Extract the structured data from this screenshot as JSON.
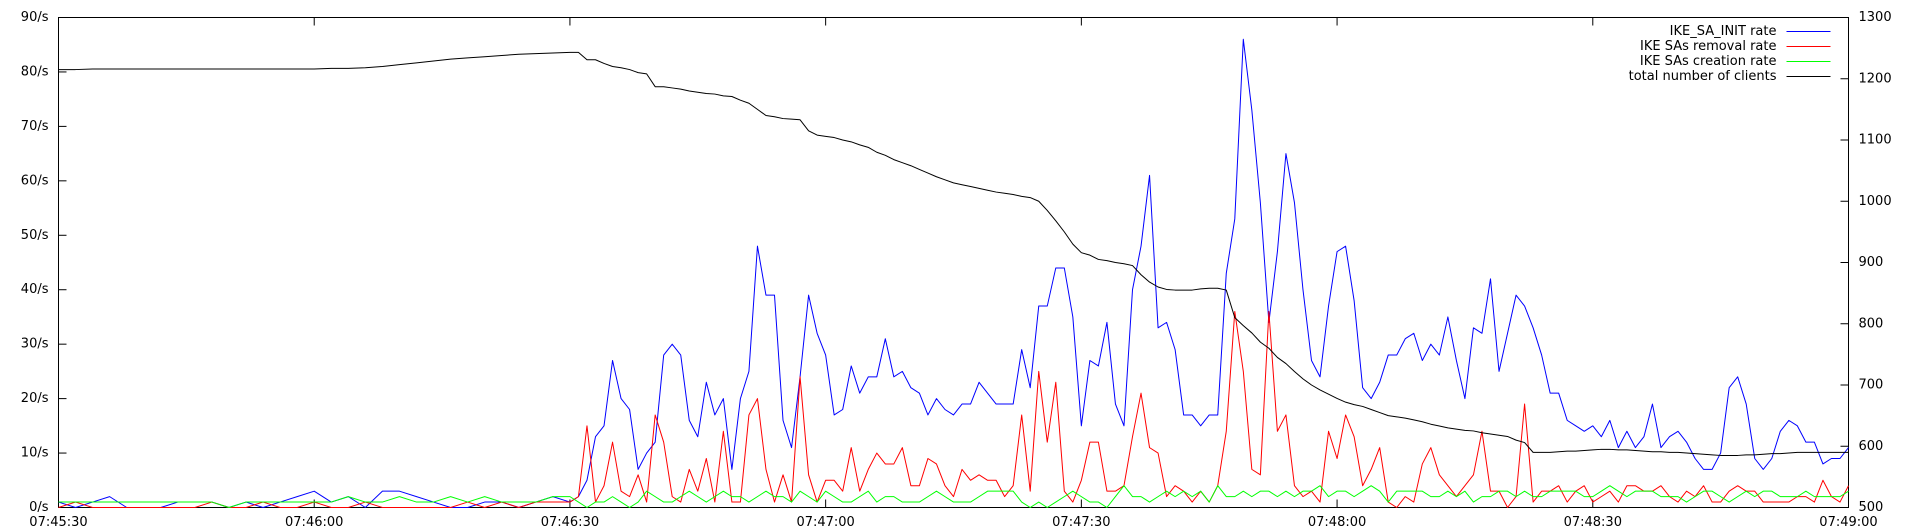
{
  "chart_data": {
    "type": "line",
    "x": [
      "07:45:30",
      "07:45:32",
      "07:45:34",
      "07:45:36",
      "07:45:38",
      "07:45:40",
      "07:45:42",
      "07:45:44",
      "07:45:46",
      "07:45:48",
      "07:45:50",
      "07:45:52",
      "07:45:54",
      "07:45:56",
      "07:45:58",
      "07:46:00",
      "07:46:02",
      "07:46:04",
      "07:46:06",
      "07:46:08",
      "07:46:10",
      "07:46:12",
      "07:46:14",
      "07:46:16",
      "07:46:18",
      "07:46:20",
      "07:46:22",
      "07:46:24",
      "07:46:26",
      "07:46:28",
      "07:46:30",
      "07:46:31",
      "07:46:32",
      "07:46:33",
      "07:46:34",
      "07:46:35",
      "07:46:36",
      "07:46:37",
      "07:46:38",
      "07:46:39",
      "07:46:40",
      "07:46:41",
      "07:46:42",
      "07:46:43",
      "07:46:44",
      "07:46:45",
      "07:46:46",
      "07:46:47",
      "07:46:48",
      "07:46:49",
      "07:46:50",
      "07:46:51",
      "07:46:52",
      "07:46:53",
      "07:46:54",
      "07:46:55",
      "07:46:56",
      "07:46:57",
      "07:46:58",
      "07:46:59",
      "07:47:00",
      "07:47:01",
      "07:47:02",
      "07:47:03",
      "07:47:04",
      "07:47:05",
      "07:47:06",
      "07:47:07",
      "07:47:08",
      "07:47:09",
      "07:47:10",
      "07:47:11",
      "07:47:12",
      "07:47:13",
      "07:47:14",
      "07:47:15",
      "07:47:16",
      "07:47:17",
      "07:47:18",
      "07:47:19",
      "07:47:20",
      "07:47:21",
      "07:47:22",
      "07:47:23",
      "07:47:24",
      "07:47:25",
      "07:47:26",
      "07:47:27",
      "07:47:28",
      "07:47:29",
      "07:47:30",
      "07:47:31",
      "07:47:32",
      "07:47:33",
      "07:47:34",
      "07:47:35",
      "07:47:36",
      "07:47:37",
      "07:47:38",
      "07:47:39",
      "07:47:40",
      "07:47:41",
      "07:47:42",
      "07:47:43",
      "07:47:44",
      "07:47:45",
      "07:47:46",
      "07:47:47",
      "07:47:48",
      "07:47:49",
      "07:47:50",
      "07:47:51",
      "07:47:52",
      "07:47:53",
      "07:47:54",
      "07:47:55",
      "07:47:56",
      "07:47:57",
      "07:47:58",
      "07:47:59",
      "07:48:00",
      "07:48:01",
      "07:48:02",
      "07:48:03",
      "07:48:04",
      "07:48:05",
      "07:48:06",
      "07:48:07",
      "07:48:08",
      "07:48:09",
      "07:48:10",
      "07:48:11",
      "07:48:12",
      "07:48:13",
      "07:48:14",
      "07:48:15",
      "07:48:16",
      "07:48:17",
      "07:48:18",
      "07:48:19",
      "07:48:20",
      "07:48:21",
      "07:48:22",
      "07:48:23",
      "07:48:24",
      "07:48:25",
      "07:48:26",
      "07:48:27",
      "07:48:28",
      "07:48:29",
      "07:48:30",
      "07:48:31",
      "07:48:32",
      "07:48:33",
      "07:48:34",
      "07:48:35",
      "07:48:36",
      "07:48:37",
      "07:48:38",
      "07:48:39",
      "07:48:40",
      "07:48:41",
      "07:48:42",
      "07:48:43",
      "07:48:44",
      "07:48:45",
      "07:48:46",
      "07:48:47",
      "07:48:48",
      "07:48:49",
      "07:48:50",
      "07:48:51",
      "07:48:52",
      "07:48:53",
      "07:48:54",
      "07:48:55",
      "07:48:56",
      "07:48:57",
      "07:48:58",
      "07:48:59",
      "07:49:00"
    ],
    "series": [
      {
        "name": "IKE_SA_INIT rate",
        "color": "#0000ff",
        "values": [
          1,
          0,
          1,
          2,
          0,
          0,
          0,
          1,
          1,
          1,
          0,
          1,
          0,
          1,
          2,
          3,
          1,
          2,
          0,
          3,
          3,
          2,
          1,
          0,
          0,
          1,
          1,
          0,
          1,
          2,
          1,
          2,
          5,
          13,
          15,
          27,
          20,
          18,
          7,
          10,
          12,
          28,
          30,
          28,
          16,
          13,
          23,
          17,
          20,
          7,
          20,
          25,
          48,
          39,
          39,
          16,
          11,
          24,
          39,
          32,
          28,
          17,
          18,
          26,
          21,
          24,
          24,
          31,
          24,
          25,
          22,
          21,
          17,
          20,
          18,
          17,
          19,
          19,
          23,
          21,
          19,
          19,
          19,
          29,
          22,
          37,
          37,
          44,
          44,
          35,
          15,
          27,
          26,
          34,
          19,
          15,
          40,
          48,
          61,
          33,
          34,
          29,
          17,
          17,
          15,
          17,
          17,
          43,
          53,
          86,
          73,
          56,
          34,
          47,
          65,
          56,
          40,
          27,
          24,
          37,
          47,
          48,
          38,
          22,
          20,
          23,
          28,
          28,
          31,
          32,
          27,
          30,
          28,
          35,
          27,
          20,
          33,
          32,
          42,
          25,
          32,
          39,
          37,
          33,
          28,
          21,
          21,
          16,
          15,
          14,
          15,
          13,
          16,
          11,
          14,
          11,
          13,
          19,
          11,
          13,
          14,
          12,
          9,
          7,
          7,
          10,
          22,
          24,
          19,
          9,
          7,
          9,
          14,
          16,
          15,
          12,
          12,
          8,
          9,
          9,
          11
        ]
      },
      {
        "name": "IKE SAs removal rate",
        "color": "#ff0000",
        "values": [
          0,
          1,
          0,
          0,
          0,
          0,
          0,
          0,
          0,
          1,
          0,
          0,
          1,
          0,
          0,
          1,
          0,
          0,
          1,
          0,
          0,
          0,
          0,
          0,
          1,
          0,
          1,
          0,
          1,
          1,
          1,
          2,
          15,
          1,
          4,
          12,
          3,
          2,
          6,
          1,
          17,
          12,
          2,
          1,
          7,
          3,
          9,
          1,
          14,
          1,
          1,
          17,
          20,
          7,
          1,
          6,
          1,
          24,
          6,
          1,
          5,
          5,
          3,
          11,
          3,
          7,
          10,
          8,
          8,
          11,
          4,
          4,
          9,
          8,
          4,
          2,
          7,
          5,
          6,
          5,
          5,
          2,
          4,
          17,
          3,
          25,
          12,
          23,
          3,
          1,
          5,
          12,
          12,
          3,
          3,
          4,
          13,
          21,
          11,
          10,
          2,
          4,
          3,
          1,
          3,
          1,
          4,
          14,
          36,
          25,
          7,
          6,
          36,
          14,
          17,
          4,
          2,
          3,
          1,
          14,
          9,
          17,
          13,
          4,
          7,
          11,
          1,
          0,
          2,
          1,
          8,
          11,
          6,
          4,
          2,
          4,
          6,
          14,
          3,
          3,
          0,
          2,
          19,
          1,
          3,
          3,
          4,
          1,
          3,
          4,
          1,
          2,
          3,
          1,
          4,
          4,
          3,
          3,
          4,
          2,
          1,
          3,
          2,
          4,
          1,
          1,
          3,
          4,
          3,
          3,
          1,
          1,
          1,
          1,
          2,
          2,
          1,
          5,
          2,
          1,
          4
        ]
      },
      {
        "name": "IKE SAs creation rate",
        "color": "#00ff00",
        "values": [
          1,
          1,
          1,
          1,
          1,
          1,
          1,
          1,
          1,
          1,
          0,
          1,
          1,
          1,
          1,
          1,
          1,
          2,
          1,
          1,
          2,
          1,
          1,
          2,
          1,
          2,
          1,
          1,
          1,
          2,
          2,
          1,
          0,
          1,
          1,
          2,
          1,
          0,
          1,
          3,
          2,
          1,
          1,
          2,
          3,
          2,
          1,
          2,
          3,
          2,
          2,
          1,
          2,
          3,
          2,
          2,
          1,
          3,
          2,
          1,
          3,
          2,
          1,
          1,
          2,
          3,
          1,
          2,
          2,
          1,
          1,
          1,
          2,
          3,
          2,
          1,
          1,
          1,
          2,
          3,
          3,
          3,
          3,
          1,
          0,
          1,
          0,
          1,
          2,
          3,
          2,
          1,
          1,
          0,
          2,
          4,
          2,
          2,
          1,
          2,
          3,
          2,
          3,
          2,
          3,
          1,
          4,
          2,
          2,
          3,
          2,
          3,
          3,
          2,
          3,
          2,
          3,
          3,
          4,
          2,
          3,
          3,
          2,
          3,
          4,
          3,
          1,
          3,
          3,
          3,
          3,
          2,
          2,
          3,
          2,
          3,
          1,
          2,
          2,
          3,
          3,
          2,
          3,
          2,
          2,
          3,
          3,
          3,
          3,
          2,
          2,
          3,
          4,
          3,
          2,
          3,
          3,
          3,
          2,
          2,
          2,
          1,
          2,
          3,
          3,
          2,
          1,
          2,
          3,
          2,
          3,
          3,
          2,
          2,
          2,
          3,
          2,
          2,
          2,
          2,
          3
        ]
      },
      {
        "name": "total number of clients",
        "color": "#000000",
        "axis": "y2",
        "values": [
          1215,
          1215,
          1216,
          1216,
          1216,
          1216,
          1216,
          1216,
          1216,
          1216,
          1216,
          1216,
          1216,
          1216,
          1216,
          1216,
          1217,
          1217,
          1218,
          1220,
          1223,
          1226,
          1229,
          1232,
          1234,
          1236,
          1238,
          1240,
          1241,
          1242,
          1243,
          1243,
          1231,
          1231,
          1225,
          1220,
          1218,
          1215,
          1210,
          1208,
          1187,
          1187,
          1185,
          1183,
          1180,
          1178,
          1176,
          1175,
          1172,
          1171,
          1165,
          1160,
          1150,
          1140,
          1138,
          1135,
          1134,
          1133,
          1115,
          1108,
          1106,
          1104,
          1100,
          1097,
          1092,
          1088,
          1080,
          1075,
          1068,
          1063,
          1058,
          1052,
          1046,
          1040,
          1035,
          1030,
          1027,
          1024,
          1021,
          1018,
          1015,
          1013,
          1011,
          1008,
          1006,
          1000,
          985,
          968,
          950,
          930,
          916,
          912,
          905,
          903,
          900,
          898,
          895,
          880,
          868,
          860,
          856,
          855,
          855,
          855,
          857,
          858,
          858,
          855,
          810,
          797,
          785,
          770,
          760,
          745,
          735,
          722,
          710,
          700,
          692,
          685,
          678,
          672,
          668,
          665,
          660,
          655,
          650,
          648,
          646,
          643,
          640,
          636,
          633,
          630,
          628,
          626,
          625,
          622,
          620,
          618,
          616,
          610,
          606,
          590,
          590,
          590,
          591,
          592,
          592,
          593,
          594,
          595,
          595,
          594,
          594,
          593,
          592,
          591,
          591,
          590,
          590,
          589,
          588,
          587,
          586,
          585,
          585,
          585,
          586,
          586,
          587,
          588,
          588,
          589,
          590,
          590,
          590,
          590,
          590,
          590,
          590
        ]
      }
    ],
    "xlim": [
      "07:45:30",
      "07:49:00"
    ],
    "xticks": [
      "07:45:30",
      "07:46:00",
      "07:46:30",
      "07:47:00",
      "07:47:30",
      "07:48:00",
      "07:48:30",
      "07:49:00"
    ],
    "ylim": [
      0,
      90
    ],
    "yticks": [
      {
        "value": 0,
        "label": "0/s"
      },
      {
        "value": 10,
        "label": "10/s"
      },
      {
        "value": 20,
        "label": "20/s"
      },
      {
        "value": 30,
        "label": "30/s"
      },
      {
        "value": 40,
        "label": "40/s"
      },
      {
        "value": 50,
        "label": "50/s"
      },
      {
        "value": 60,
        "label": "60/s"
      },
      {
        "value": 70,
        "label": "70/s"
      },
      {
        "value": 80,
        "label": "80/s"
      },
      {
        "value": 90,
        "label": "90/s"
      }
    ],
    "y2lim": [
      500,
      1300
    ],
    "y2ticks": [
      500,
      600,
      700,
      800,
      900,
      1000,
      1100,
      1200,
      1300
    ],
    "legend": "upper right",
    "grid": false
  }
}
